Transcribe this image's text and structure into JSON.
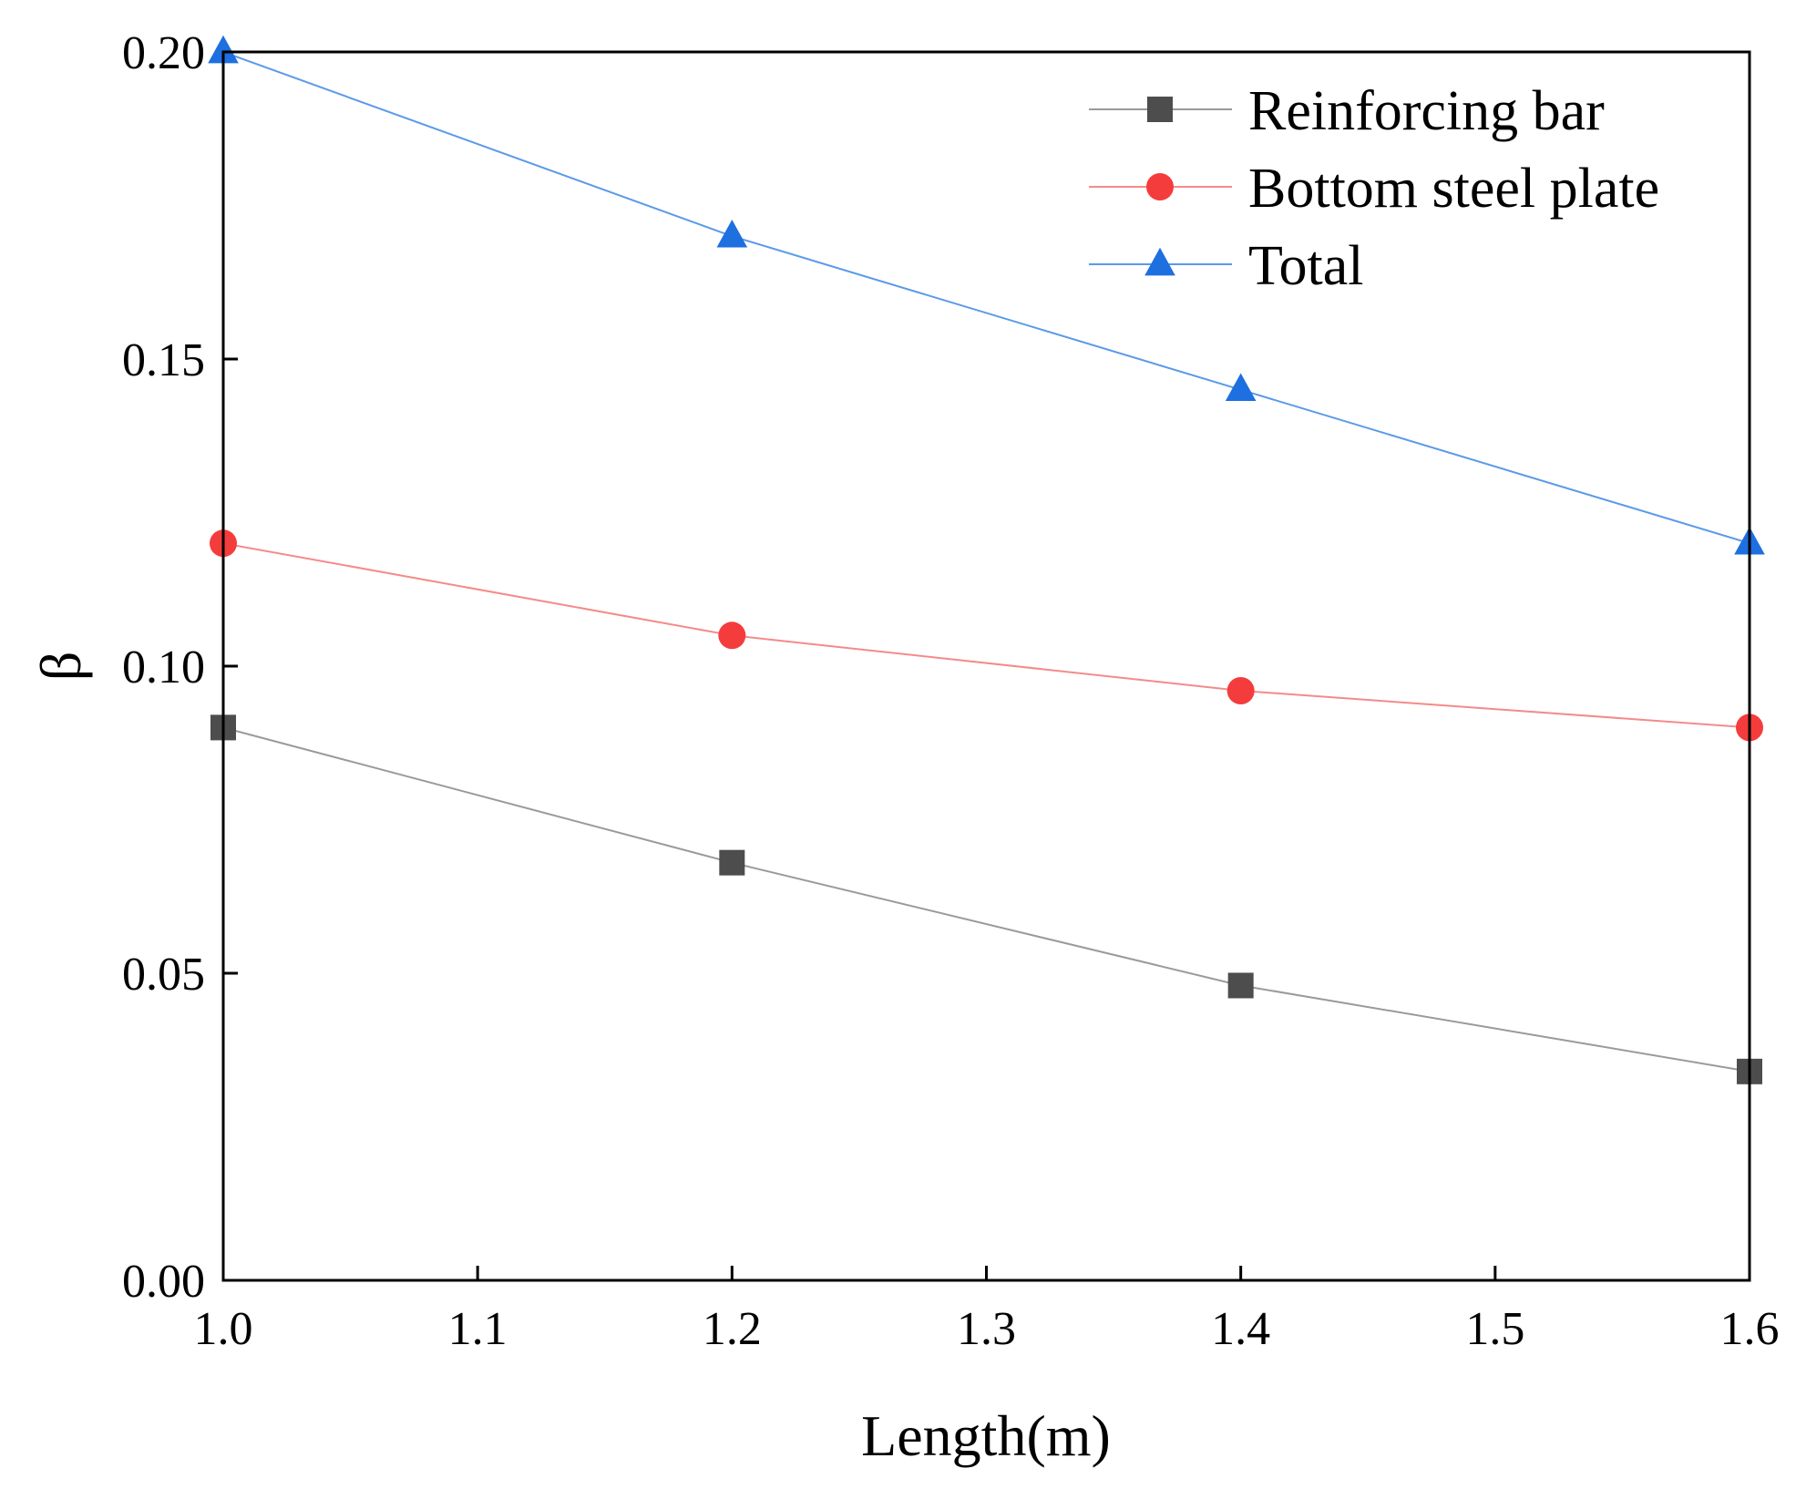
{
  "chart_data": {
    "type": "line",
    "title": "",
    "xlabel": "Length(m)",
    "ylabel": "β",
    "xlim": [
      1.0,
      1.6
    ],
    "ylim": [
      0.0,
      0.2
    ],
    "xticks": [
      "1.0",
      "1.1",
      "1.2",
      "1.3",
      "1.4",
      "1.5",
      "1.6"
    ],
    "yticks": [
      "0.00",
      "0.05",
      "0.10",
      "0.15",
      "0.20"
    ],
    "grid": false,
    "legend_position": "top-right",
    "x": [
      1.0,
      1.2,
      1.4,
      1.6
    ],
    "series": [
      {
        "name": "Reinforcing bar",
        "values": [
          0.09,
          0.068,
          0.048,
          0.034
        ],
        "color": "#4d4d4d",
        "line_color": "#9a9a9a",
        "marker": "square"
      },
      {
        "name": "Bottom steel plate",
        "values": [
          0.12,
          0.105,
          0.096,
          0.09
        ],
        "color": "#f53c3c",
        "line_color": "#f58a8a",
        "marker": "circle"
      },
      {
        "name": "Total",
        "values": [
          0.2,
          0.17,
          0.145,
          0.12
        ],
        "color": "#1e6fe0",
        "line_color": "#5a9ae8",
        "marker": "triangle"
      }
    ]
  }
}
